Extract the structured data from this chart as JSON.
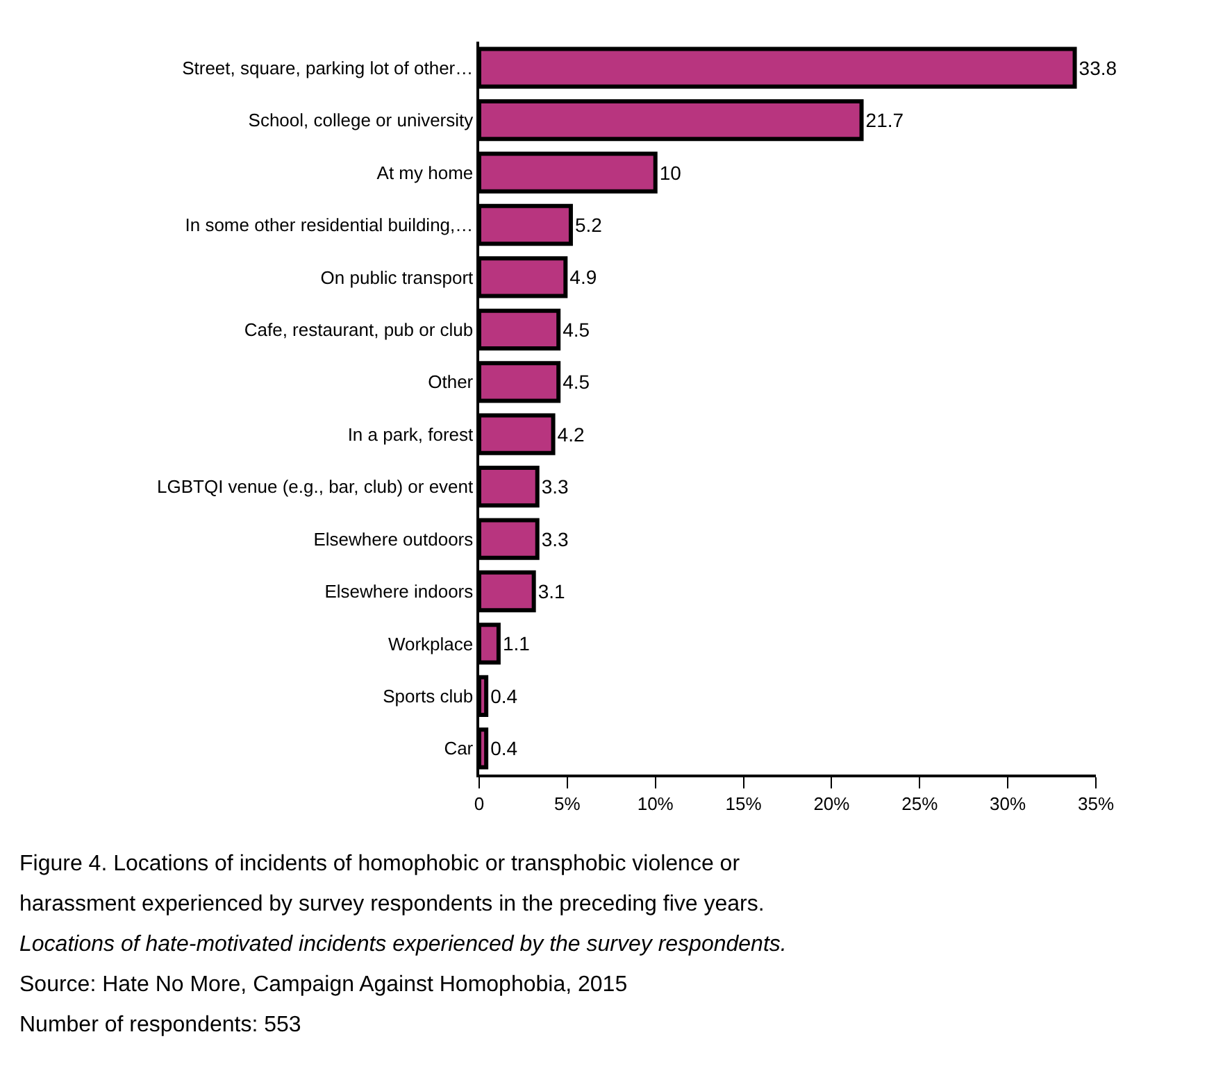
{
  "chart_data": {
    "type": "bar",
    "orientation": "horizontal",
    "title": "Figure 4. Locations of incidents of homophobic or transphobic violence or harassment experienced by survey respondents in the preceding five years.",
    "subtitle": "Locations of hate-motivated incidents experienced by the survey respondents.",
    "annotations": [
      "Source: Hate No More, Campaign Against Homophobia, 2015",
      "Number of respondents: 553"
    ],
    "categories": [
      "Street, square, parking lot of other…",
      "School, college or university",
      "At my home",
      "In some other residential building,…",
      "On public transport",
      "Cafe, restaurant, pub or club",
      "Other",
      "In a park, forest",
      "LGBTQI venue (e.g., bar, club) or event",
      "Elsewhere outdoors",
      "Elsewhere indoors",
      "Workplace",
      "Sports club",
      "Car"
    ],
    "values": [
      33.8,
      21.7,
      10,
      5.2,
      4.9,
      4.5,
      4.5,
      4.2,
      3.3,
      3.3,
      3.1,
      1.1,
      0.4,
      0.4
    ],
    "color": "#b8357f",
    "data_labels": true,
    "xlim": [
      0,
      35
    ],
    "xticks": [
      0,
      {
        "value": 5,
        "label": "5%"
      },
      {
        "value": 10,
        "label": "10%"
      },
      {
        "value": 15,
        "label": "15%"
      },
      {
        "value": 20,
        "label": "20%"
      },
      {
        "value": 25,
        "label": "25%"
      },
      {
        "value": 30,
        "label": "30%"
      },
      {
        "value": 35,
        "label": "35%"
      }
    ],
    "legend": false
  }
}
